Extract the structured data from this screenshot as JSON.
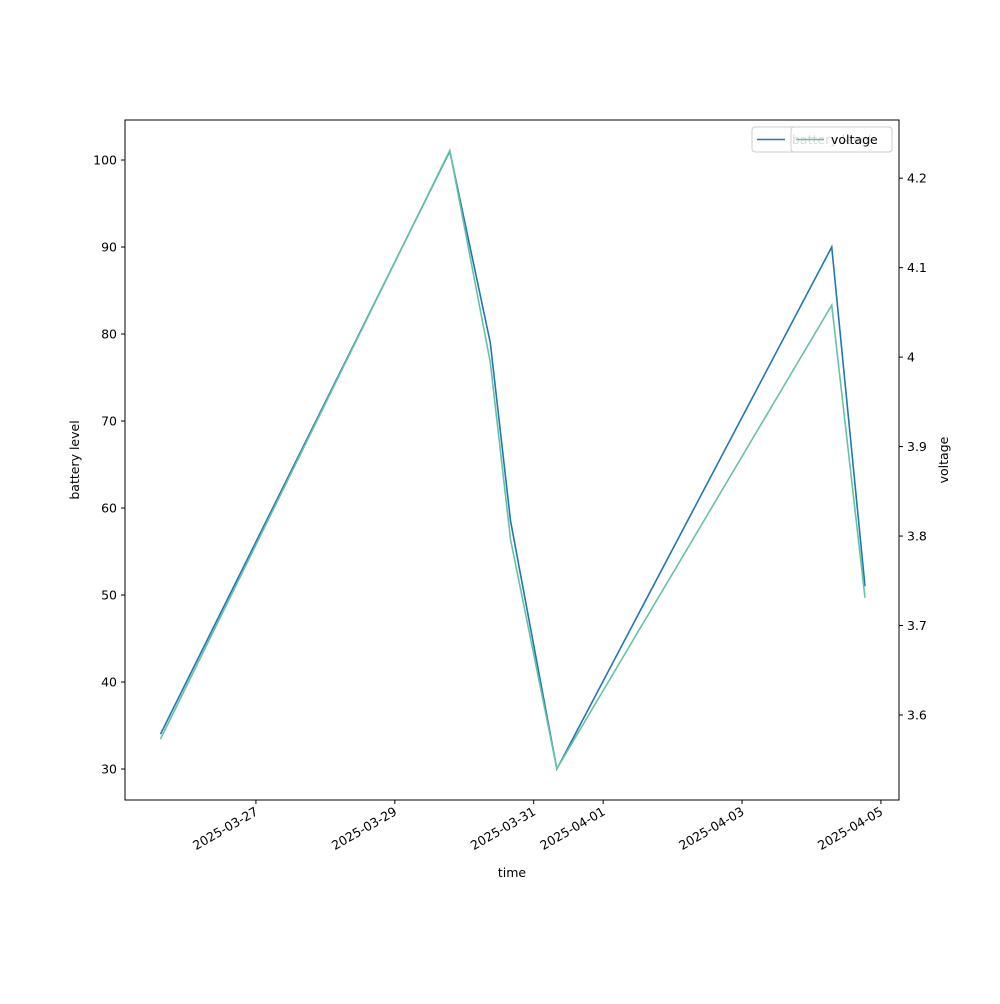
{
  "chart_data": {
    "type": "line",
    "x_label": "time",
    "y_label": "battery level",
    "y2_label": "voltage",
    "x": [
      "2025-03-25T15:00",
      "2025-03-29T19:00",
      "2025-03-30T09:00",
      "2025-03-30T16:00",
      "2025-03-31T08:00",
      "2025-04-04T07:00",
      "2025-04-04T18:30"
    ],
    "series": [
      {
        "name": "battery level",
        "color": "#1f77b4",
        "values": [
          34,
          101,
          79,
          58.5,
          30,
          90,
          51
        ]
      },
      {
        "name": "voltage",
        "color": "#66c2a5",
        "axis": "y2",
        "values": [
          3.573,
          4.231,
          3.994,
          3.796,
          3.54,
          4.058,
          3.731
        ]
      }
    ],
    "xlim": [
      "2025-03-25T02:45",
      "2025-04-05T06:15"
    ],
    "xticks": [
      "2025-03-27",
      "2025-03-29",
      "2025-03-31",
      "2025-04-01",
      "2025-04-03",
      "2025-04-05"
    ],
    "ylim": [
      26.44,
      104.6
    ],
    "yticks": [
      30,
      40,
      50,
      60,
      70,
      80,
      90,
      100
    ],
    "y2lim": [
      3.505,
      4.265
    ],
    "y2ticks": [
      3.6,
      3.7,
      3.8,
      3.9,
      4.0,
      4.1,
      4.2
    ],
    "legend": "upper right"
  }
}
